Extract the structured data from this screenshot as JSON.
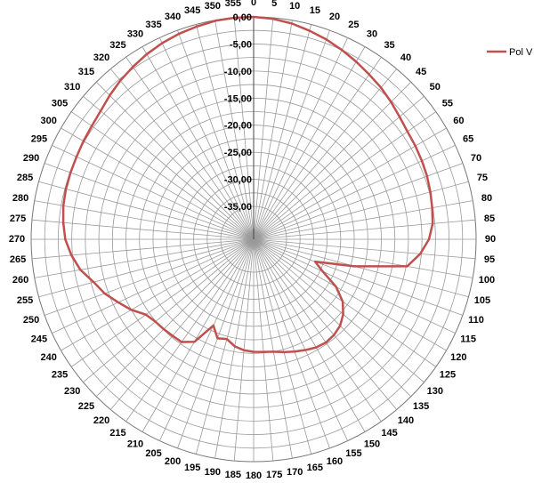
{
  "chart_data": {
    "type": "polar-line",
    "title": "",
    "angle_unit": "degrees",
    "angle_step": 5,
    "angle_direction": "clockwise",
    "angle_zero": "top",
    "angle_ticks": [
      "0",
      "5",
      "10",
      "15",
      "20",
      "25",
      "30",
      "35",
      "40",
      "45",
      "50",
      "55",
      "60",
      "65",
      "70",
      "75",
      "80",
      "85",
      "90",
      "95",
      "100",
      "105",
      "110",
      "115",
      "120",
      "125",
      "130",
      "135",
      "140",
      "145",
      "150",
      "155",
      "160",
      "165",
      "170",
      "175",
      "180",
      "185",
      "190",
      "195",
      "200",
      "205",
      "210",
      "215",
      "220",
      "225",
      "230",
      "235",
      "240",
      "245",
      "250",
      "255",
      "260",
      "265",
      "270",
      "275",
      "280",
      "285",
      "290",
      "295",
      "300",
      "305",
      "310",
      "315",
      "320",
      "325",
      "330",
      "335",
      "340",
      "345",
      "350",
      "355"
    ],
    "radial_range": [
      -35,
      0
    ],
    "radial_step": 2.5,
    "radial_labels": [
      {
        "value": 0,
        "text": "0,00"
      },
      {
        "value": -5,
        "text": "-5,00"
      },
      {
        "value": -10,
        "text": "-10,00"
      },
      {
        "value": -15,
        "text": "-15,00"
      },
      {
        "value": -20,
        "text": "-20,00"
      },
      {
        "value": -25,
        "text": "-25,00"
      },
      {
        "value": -30,
        "text": "-30,00"
      },
      {
        "value": -35,
        "text": "-35,00"
      }
    ],
    "legend_position": "top-right",
    "series": [
      {
        "name": "Pol V",
        "color": "#c0504d",
        "angles": [
          0,
          5,
          10,
          15,
          20,
          25,
          30,
          35,
          40,
          45,
          50,
          55,
          60,
          65,
          70,
          75,
          80,
          85,
          90,
          95,
          100,
          105,
          110,
          115,
          120,
          125,
          130,
          135,
          140,
          145,
          150,
          155,
          160,
          165,
          170,
          175,
          180,
          185,
          190,
          195,
          200,
          205,
          210,
          215,
          220,
          225,
          230,
          235,
          240,
          245,
          250,
          255,
          260,
          265,
          270,
          275,
          280,
          285,
          290,
          295,
          300,
          305,
          310,
          315,
          320,
          325,
          330,
          335,
          340,
          345,
          350,
          355
        ],
        "values": [
          0,
          -0.2,
          -0.6,
          -1.2,
          -1.8,
          -2.5,
          -3.2,
          -3.9,
          -4.5,
          -5.2,
          -5.9,
          -6.4,
          -6.6,
          -6.8,
          -7.0,
          -7.3,
          -7.6,
          -7.9,
          -8.7,
          -10.2,
          -12.3,
          -21.8,
          -29.0,
          -27.0,
          -23.5,
          -21.0,
          -19.5,
          -18.5,
          -18.0,
          -17.8,
          -18.0,
          -18.5,
          -19.0,
          -19.5,
          -20.0,
          -20.2,
          -20.3,
          -20.5,
          -21.0,
          -22.0,
          -21.6,
          -23.5,
          -19.2,
          -17.9,
          -17.8,
          -17.6,
          -17.4,
          -16.8,
          -15.0,
          -13.5,
          -11.8,
          -10.5,
          -8.6,
          -7.3,
          -6.3,
          -5.8,
          -5.4,
          -5.2,
          -5.1,
          -5.0,
          -4.8,
          -4.6,
          -4.2,
          -3.5,
          -2.8,
          -2.2,
          -1.6,
          -1.1,
          -0.7,
          -0.4,
          -0.1,
          0
        ]
      }
    ]
  }
}
